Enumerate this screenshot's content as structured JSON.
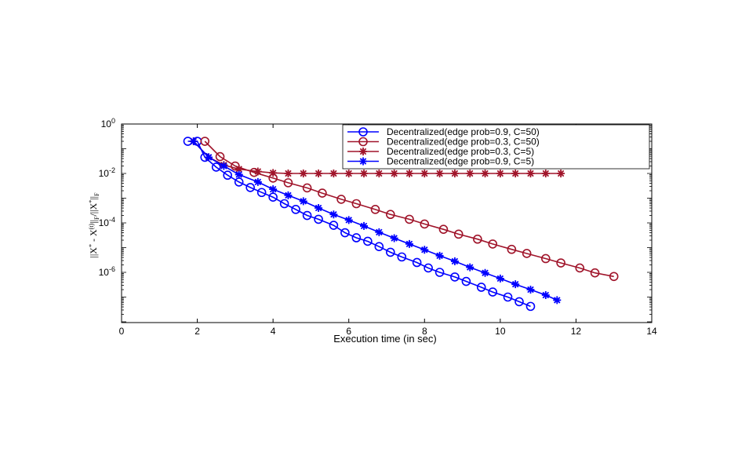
{
  "chart_data": {
    "type": "line",
    "title": "",
    "xlabel": "Execution time (in sec)",
    "ylabel": "||X* - X(t)||F/||X*||F",
    "x_ticks": [
      0,
      2,
      4,
      6,
      8,
      10,
      12,
      14
    ],
    "y_tick_labels": [
      {
        "base": "10",
        "exp": "0",
        "value": 1
      },
      {
        "base": "10",
        "exp": "-2",
        "value": 0.01
      },
      {
        "base": "10",
        "exp": "-4",
        "value": 0.0001
      },
      {
        "base": "10",
        "exp": "-6",
        "value": 1e-06
      }
    ],
    "xlim": [
      0,
      14
    ],
    "ylim": [
      1e-08,
      1
    ],
    "y_scale": "log",
    "grid": false,
    "legend_position": "top-right",
    "series": [
      {
        "name": "Decentralized(edge prob=0.9, C=50)",
        "color": "#0000ff",
        "marker": "circle",
        "points": [
          [
            1.75,
            0.2
          ],
          [
            2.0,
            0.2
          ],
          [
            2.2,
            0.045
          ],
          [
            2.5,
            0.018
          ],
          [
            2.8,
            0.0085
          ],
          [
            3.1,
            0.0045
          ],
          [
            3.4,
            0.0027
          ],
          [
            3.7,
            0.0017
          ],
          [
            4.0,
            0.0011
          ],
          [
            4.3,
            0.0006
          ],
          [
            4.6,
            0.00035
          ],
          [
            4.9,
            0.0002
          ],
          [
            5.2,
            0.00014
          ],
          [
            5.6,
            8e-05
          ],
          [
            5.9,
            4e-05
          ],
          [
            6.2,
            2.5e-05
          ],
          [
            6.5,
            1.8e-05
          ],
          [
            6.8,
            1.1e-05
          ],
          [
            7.1,
            6.5e-06
          ],
          [
            7.4,
            4.2e-06
          ],
          [
            7.8,
            2.5e-06
          ],
          [
            8.1,
            1.5e-06
          ],
          [
            8.4,
            1e-06
          ],
          [
            8.8,
            6.5e-07
          ],
          [
            9.1,
            4.3e-07
          ],
          [
            9.5,
            2.5e-07
          ],
          [
            9.8,
            1.6e-07
          ],
          [
            10.2,
            1e-07
          ],
          [
            10.5,
            6.5e-08
          ],
          [
            10.8,
            4.2e-08
          ]
        ]
      },
      {
        "name": "Decentralized(edge prob=0.3, C=50)",
        "color": "#a0142a",
        "marker": "circle",
        "points": [
          [
            2.2,
            0.2
          ],
          [
            2.6,
            0.048
          ],
          [
            3.0,
            0.02
          ],
          [
            3.5,
            0.011
          ],
          [
            4.0,
            0.0065
          ],
          [
            4.4,
            0.0042
          ],
          [
            4.9,
            0.0026
          ],
          [
            5.3,
            0.0016
          ],
          [
            5.8,
            0.0009
          ],
          [
            6.2,
            0.0006
          ],
          [
            6.7,
            0.00035
          ],
          [
            7.1,
            0.00022
          ],
          [
            7.6,
            0.00014
          ],
          [
            8.0,
            9e-05
          ],
          [
            8.5,
            5.5e-05
          ],
          [
            8.9,
            3.5e-05
          ],
          [
            9.4,
            2.2e-05
          ],
          [
            9.8,
            1.4e-05
          ],
          [
            10.3,
            8.5e-06
          ],
          [
            10.7,
            5.8e-06
          ],
          [
            11.2,
            3.6e-06
          ],
          [
            11.6,
            2.4e-06
          ],
          [
            12.1,
            1.5e-06
          ],
          [
            12.5,
            9.5e-07
          ],
          [
            13.0,
            6.8e-07
          ]
        ]
      },
      {
        "name": "Decentralized(edge prob=0.3, C=5)",
        "color": "#a0142a",
        "marker": "star",
        "points": [
          [
            1.9,
            0.2
          ],
          [
            2.3,
            0.045
          ],
          [
            2.7,
            0.022
          ],
          [
            3.1,
            0.015
          ],
          [
            3.6,
            0.012
          ],
          [
            4.0,
            0.0105
          ],
          [
            4.4,
            0.01
          ],
          [
            4.8,
            0.01
          ],
          [
            5.2,
            0.01
          ],
          [
            5.6,
            0.01
          ],
          [
            6.0,
            0.01
          ],
          [
            6.4,
            0.01
          ],
          [
            6.8,
            0.01
          ],
          [
            7.2,
            0.01
          ],
          [
            7.6,
            0.01
          ],
          [
            8.0,
            0.01
          ],
          [
            8.4,
            0.01
          ],
          [
            8.8,
            0.01
          ],
          [
            9.2,
            0.01
          ],
          [
            9.6,
            0.01
          ],
          [
            10.0,
            0.01
          ],
          [
            10.4,
            0.01
          ],
          [
            10.8,
            0.01
          ],
          [
            11.2,
            0.01
          ],
          [
            11.6,
            0.01
          ]
        ]
      },
      {
        "name": "Decentralized(edge prob=0.9, C=5)",
        "color": "#0000ff",
        "marker": "star",
        "points": [
          [
            1.9,
            0.2
          ],
          [
            2.3,
            0.045
          ],
          [
            2.7,
            0.02
          ],
          [
            3.1,
            0.009
          ],
          [
            3.6,
            0.0045
          ],
          [
            4.0,
            0.0023
          ],
          [
            4.4,
            0.0013
          ],
          [
            4.8,
            0.00075
          ],
          [
            5.2,
            0.0004
          ],
          [
            5.6,
            0.00022
          ],
          [
            6.0,
            0.00013
          ],
          [
            6.4,
            7.5e-05
          ],
          [
            6.8,
            4.2e-05
          ],
          [
            7.2,
            2.4e-05
          ],
          [
            7.6,
            1.4e-05
          ],
          [
            8.0,
            8.2e-06
          ],
          [
            8.4,
            4.7e-06
          ],
          [
            8.8,
            2.8e-06
          ],
          [
            9.2,
            1.6e-06
          ],
          [
            9.6,
            9.5e-07
          ],
          [
            10.0,
            5.6e-07
          ],
          [
            10.4,
            3.3e-07
          ],
          [
            10.8,
            2e-07
          ],
          [
            11.2,
            1.2e-07
          ],
          [
            11.5,
            7.5e-08
          ]
        ]
      }
    ]
  }
}
